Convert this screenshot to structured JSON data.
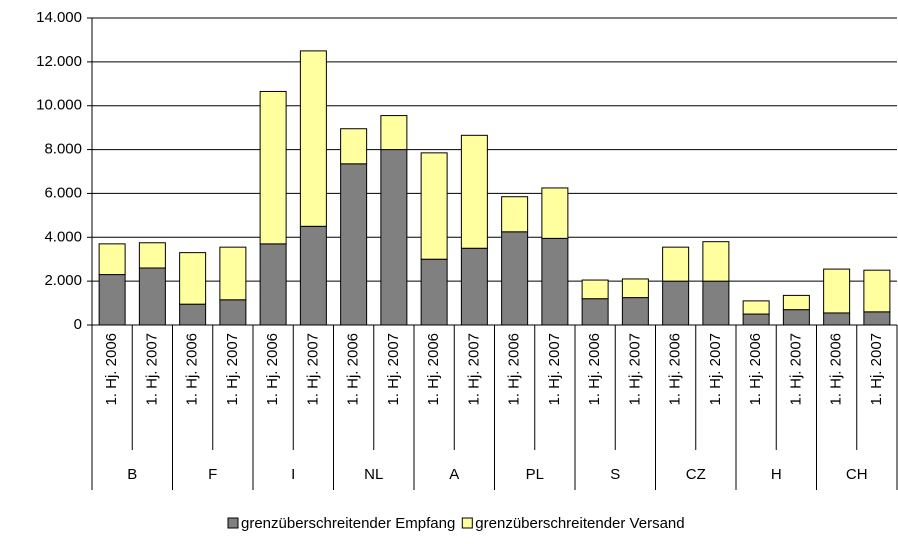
{
  "chart_data": {
    "type": "stacked-bar",
    "categories": [
      "1. Hj. 2006",
      "1. Hj. 2007",
      "1. Hj. 2006",
      "1. Hj. 2007",
      "1. Hj. 2006",
      "1. Hj. 2007",
      "1. Hj. 2006",
      "1. Hj. 2007",
      "1. Hj. 2006",
      "1. Hj. 2007",
      "1. Hj. 2006",
      "1. Hj. 2007",
      "1. Hj. 2006",
      "1. Hj. 2007",
      "1. Hj. 2006",
      "1. Hj. 2007",
      "1. Hj. 2006",
      "1. Hj. 2007",
      "1. Hj. 2006",
      "1. Hj. 2007"
    ],
    "groups": [
      "B",
      "F",
      "I",
      "NL",
      "A",
      "PL",
      "S",
      "CZ",
      "H",
      "CH"
    ],
    "series": [
      {
        "name": "grenzüberschreitender Empfang",
        "color": "#808080",
        "values": [
          2300,
          2600,
          950,
          1150,
          3700,
          4500,
          7350,
          8000,
          3000,
          3500,
          4250,
          3950,
          1200,
          1250,
          2000,
          2000,
          500,
          700,
          550,
          600
        ]
      },
      {
        "name": "grenzüberschreitender Versand",
        "color": "#ffffa0",
        "values": [
          1400,
          1150,
          2350,
          2400,
          6950,
          8000,
          1600,
          1550,
          4850,
          5150,
          1600,
          2300,
          850,
          850,
          1550,
          1800,
          600,
          650,
          2000,
          1900
        ]
      }
    ],
    "ylim": [
      0,
      14000
    ],
    "yticks": [
      0,
      {
        "value": 2000,
        "label": "2.000"
      },
      {
        "value": 4000,
        "label": "4.000"
      },
      {
        "value": 6000,
        "label": "6.000"
      },
      {
        "value": 8000,
        "label": "8.000"
      },
      {
        "value": 10000,
        "label": "10.000"
      },
      {
        "value": 12000,
        "label": "12.000"
      },
      {
        "value": 14000,
        "label": "14.000"
      }
    ],
    "grid": true,
    "legend": "bottom"
  }
}
